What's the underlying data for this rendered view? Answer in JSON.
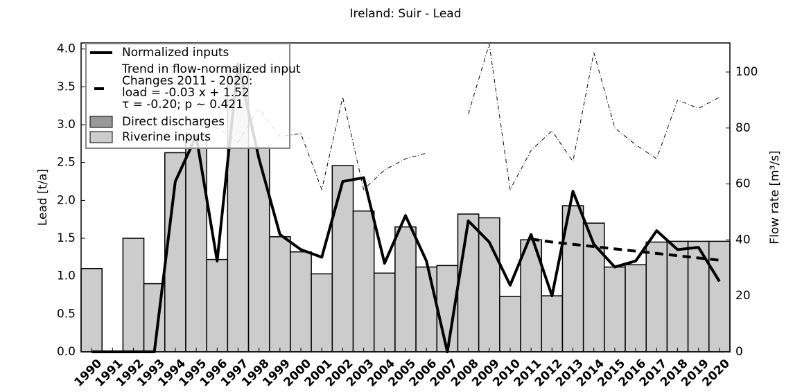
{
  "chart_data": {
    "type": "bar",
    "title": "Ireland: Suir - Lead",
    "ylabel": "Lead [t/a]",
    "y2label": "Flow rate [m³/s]",
    "categories": [
      "1990",
      "1991",
      "1992",
      "1993",
      "1994",
      "1995",
      "1996",
      "1997",
      "1998",
      "1999",
      "2000",
      "2001",
      "2002",
      "2003",
      "2004",
      "2005",
      "2006",
      "2007",
      "2008",
      "2009",
      "2010",
      "2011",
      "2012",
      "2013",
      "2014",
      "2015",
      "2016",
      "2017",
      "2018",
      "2019",
      "2020"
    ],
    "ylim": [
      0,
      4.08
    ],
    "yticks": [
      {
        "value": 0,
        "label": "0.0"
      },
      0.5,
      {
        "value": 1,
        "label": "1.0"
      },
      1.5,
      {
        "value": 2,
        "label": "2.0"
      },
      2.5,
      {
        "value": 3,
        "label": "3.0"
      },
      3.5,
      {
        "value": 4,
        "label": "4.0"
      }
    ],
    "y2lim": [
      0,
      110.4
    ],
    "y2ticks": [
      0,
      20,
      40,
      60,
      80,
      100
    ],
    "series": [
      {
        "name": "Direct discharges",
        "kind": "bar",
        "color": "#999999",
        "values": [
          0,
          0,
          0,
          0,
          0,
          0,
          0,
          0,
          0,
          0,
          0,
          0,
          0,
          0,
          0,
          0,
          0,
          0,
          0,
          0,
          0,
          0,
          0,
          0,
          0,
          0,
          0,
          0,
          0,
          0,
          0
        ]
      },
      {
        "name": "Riverine inputs",
        "kind": "bar",
        "color": "#cccccc",
        "values": [
          1.1,
          0,
          1.5,
          0.9,
          2.63,
          2.85,
          1.22,
          3.75,
          2.7,
          1.52,
          1.32,
          1.03,
          2.46,
          1.86,
          1.04,
          1.65,
          1.12,
          1.14,
          1.82,
          1.77,
          0.73,
          1.48,
          0.74,
          1.93,
          1.7,
          1.12,
          1.15,
          1.45,
          1.46,
          1.46,
          1.46
        ]
      },
      {
        "name": "Normalized inputs",
        "kind": "line",
        "color": "#000000",
        "values": [
          0,
          0,
          0,
          0,
          2.25,
          2.85,
          1.2,
          3.8,
          2.55,
          1.55,
          1.35,
          1.25,
          2.25,
          2.3,
          1.17,
          1.8,
          1.2,
          0,
          1.73,
          1.45,
          0.88,
          1.55,
          0.74,
          2.12,
          1.42,
          1.12,
          1.2,
          1.6,
          1.35,
          1.38,
          0.93
        ]
      },
      {
        "name": "Trend in flow-normalized input",
        "kind": "trend",
        "color": "#000000",
        "values": [
          null,
          null,
          null,
          null,
          null,
          null,
          null,
          null,
          null,
          null,
          null,
          null,
          null,
          null,
          null,
          null,
          null,
          null,
          null,
          null,
          null,
          1.49,
          1.45,
          1.42,
          1.39,
          1.36,
          1.33,
          1.3,
          1.27,
          1.24,
          1.21
        ]
      },
      {
        "kind": "flow",
        "axis": "y2",
        "color": "#000000",
        "values": [
          null,
          null,
          null,
          null,
          null,
          81,
          80,
          75,
          87,
          77,
          78,
          58,
          91,
          58,
          65,
          69,
          71,
          null,
          85,
          110,
          58,
          72,
          79,
          68,
          107,
          80,
          74,
          69,
          90,
          87,
          91
        ]
      }
    ],
    "annotation": [
      "Changes 2011 - 2020:",
      "load = -0.03 x +  1.52",
      "τ = -0.20; p ~ 0.421"
    ]
  }
}
